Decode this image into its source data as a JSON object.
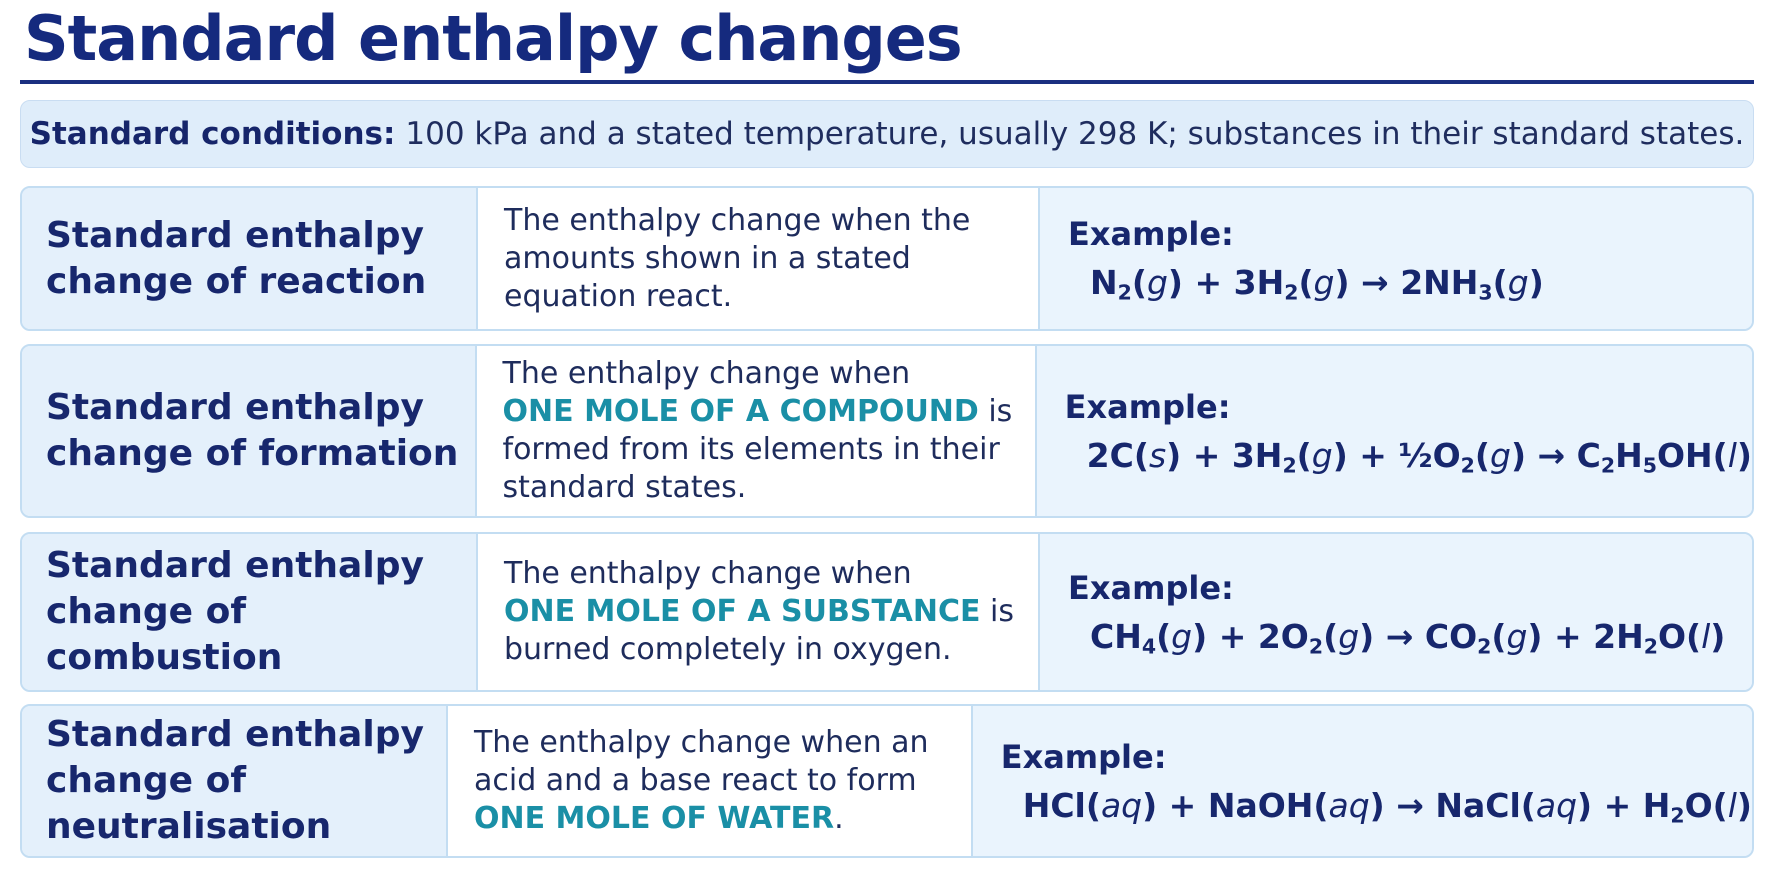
{
  "title": "Standard enthalpy changes",
  "conditions": {
    "label": "Standard conditions:",
    "text": "100 kPa and a stated temperature, usually 298 K; substances in their standard states."
  },
  "rows": [
    {
      "term_line1": "Standard enthalpy",
      "term_line2": "change of reaction",
      "def_lines": [
        "The enthalpy change when the",
        "amounts shown in a stated",
        "equation react."
      ],
      "example_label": "Example:",
      "equation": "N₂(g) + 3H₂(g) → 2NH₃(g)"
    },
    {
      "term_line1": "Standard enthalpy",
      "term_line2": "change of formation",
      "def_line1": "The enthalpy change when",
      "def_highlight": "ONE MOLE OF A COMPOUND",
      "def_after_highlight": " is",
      "def_line3": "formed from its elements in their",
      "def_line4": "standard states.",
      "example_label": "Example:",
      "equation": "2C(s) + 3H₂(g) + ½O₂(g) → C₂H₅OH(l)"
    },
    {
      "term_line1": "Standard enthalpy",
      "term_line2": "change of combustion",
      "def_line1": "The enthalpy change when",
      "def_highlight": "ONE MOLE OF A SUBSTANCE",
      "def_after_highlight": " is",
      "def_line3": "burned completely in oxygen.",
      "example_label": "Example:",
      "equation": "CH₄(g) + 2O₂(g) → CO₂(g) + 2H₂O(l)"
    },
    {
      "term_line1": "Standard enthalpy",
      "term_line2": "change of neutralisation",
      "def_line1": "The enthalpy change when an",
      "def_line2": "acid and a base react to form",
      "def_highlight": "ONE MOLE OF WATER",
      "def_after_highlight": ".",
      "example_label": "Example:",
      "equation": "HCl(aq) + NaOH(aq) → NaCl(aq) + H₂O(l)"
    }
  ],
  "colors": {
    "title": "#152a7e",
    "highlight": "#1a8fa6",
    "panel": "#eaf4fd",
    "border": "#c3ddf2"
  }
}
